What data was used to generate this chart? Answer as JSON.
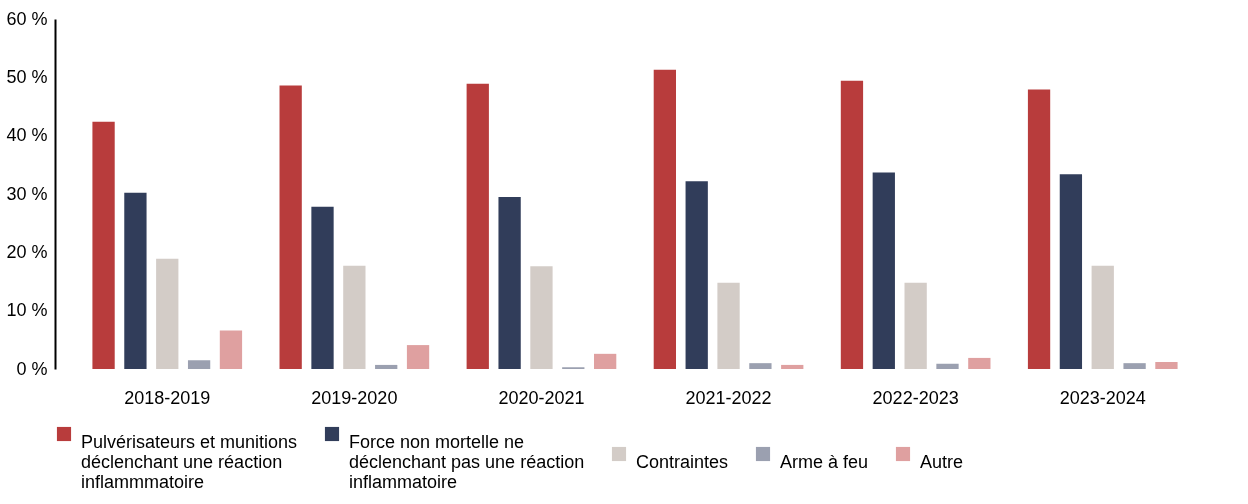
{
  "chart_data": {
    "type": "bar",
    "categories": [
      "2018-2019",
      "2019-2020",
      "2020-2021",
      "2021-2022",
      "2022-2023",
      "2023-2024"
    ],
    "series": [
      {
        "name": "Pulvérisateurs et munitions déclenchant une réaction inflammmatoire",
        "color": "#b83c3c",
        "values": [
          42.4,
          48.6,
          48.9,
          51.3,
          49.4,
          47.9
        ]
      },
      {
        "name": "Force non mortelle ne déclenchant pas une réaction inflammatoire",
        "color": "#313d5a",
        "values": [
          30.2,
          27.8,
          29.5,
          32.2,
          33.7,
          33.4
        ]
      },
      {
        "name": "Contraintes",
        "color": "#d3ccc7",
        "values": [
          18.9,
          17.7,
          17.6,
          14.8,
          14.8,
          17.7
        ]
      },
      {
        "name": "Arme à feu",
        "color": "#9ba0b0",
        "values": [
          1.5,
          0.7,
          0.3,
          1.0,
          0.9,
          1.0
        ]
      },
      {
        "name": "Autre",
        "color": "#dfa0a0",
        "values": [
          6.6,
          4.1,
          2.6,
          0.7,
          1.9,
          1.2
        ]
      }
    ],
    "ylim": [
      0,
      60
    ],
    "yticks": [
      {
        "value": 0,
        "label": "0 %"
      },
      {
        "value": 10,
        "label": "10 %"
      },
      {
        "value": 20,
        "label": "20 %"
      },
      {
        "value": 30,
        "label": "30 %"
      },
      {
        "value": 40,
        "label": "40 %"
      },
      {
        "value": 50,
        "label": "50 %"
      },
      {
        "value": 60,
        "label": "60 %"
      }
    ],
    "grid": false,
    "legend": "bottom"
  }
}
